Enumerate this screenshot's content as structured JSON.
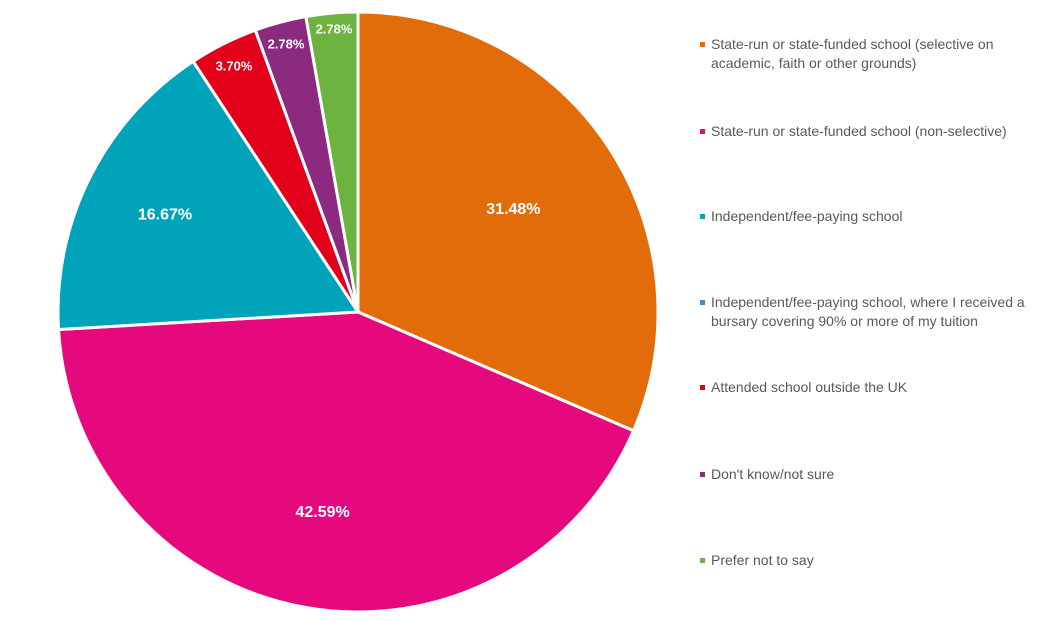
{
  "chart_data": {
    "type": "pie",
    "title": "",
    "slices": [
      {
        "label": "State-run or state-funded school (selective on academic, faith or other grounds)",
        "value": 31.48,
        "display": "31.48%",
        "color": "#E36C0A"
      },
      {
        "label": "State-run or state-funded school (non-selective)",
        "value": 42.59,
        "display": "42.59%",
        "color": "#E6097E"
      },
      {
        "label": "Independent/fee-paying school",
        "value": 16.67,
        "display": "16.67%",
        "color": "#00A3BA"
      },
      {
        "label": "Independent/fee-paying school, where I received a bursary covering 90% or more of my tuition",
        "value": 0,
        "display": "",
        "color": "#3B8FD9"
      },
      {
        "label": "Attended school outside the UK",
        "value": 3.7,
        "display": "3.70%",
        "color": "#E3001B"
      },
      {
        "label": "Don't know/not sure",
        "value": 2.78,
        "display": "2.78%",
        "color": "#8B2A7E"
      },
      {
        "label": "Prefer not to say",
        "value": 2.78,
        "display": "2.78%",
        "color": "#6DB33F"
      }
    ],
    "start_angle_deg": 0,
    "direction": "clockwise",
    "legend_position": "right"
  }
}
